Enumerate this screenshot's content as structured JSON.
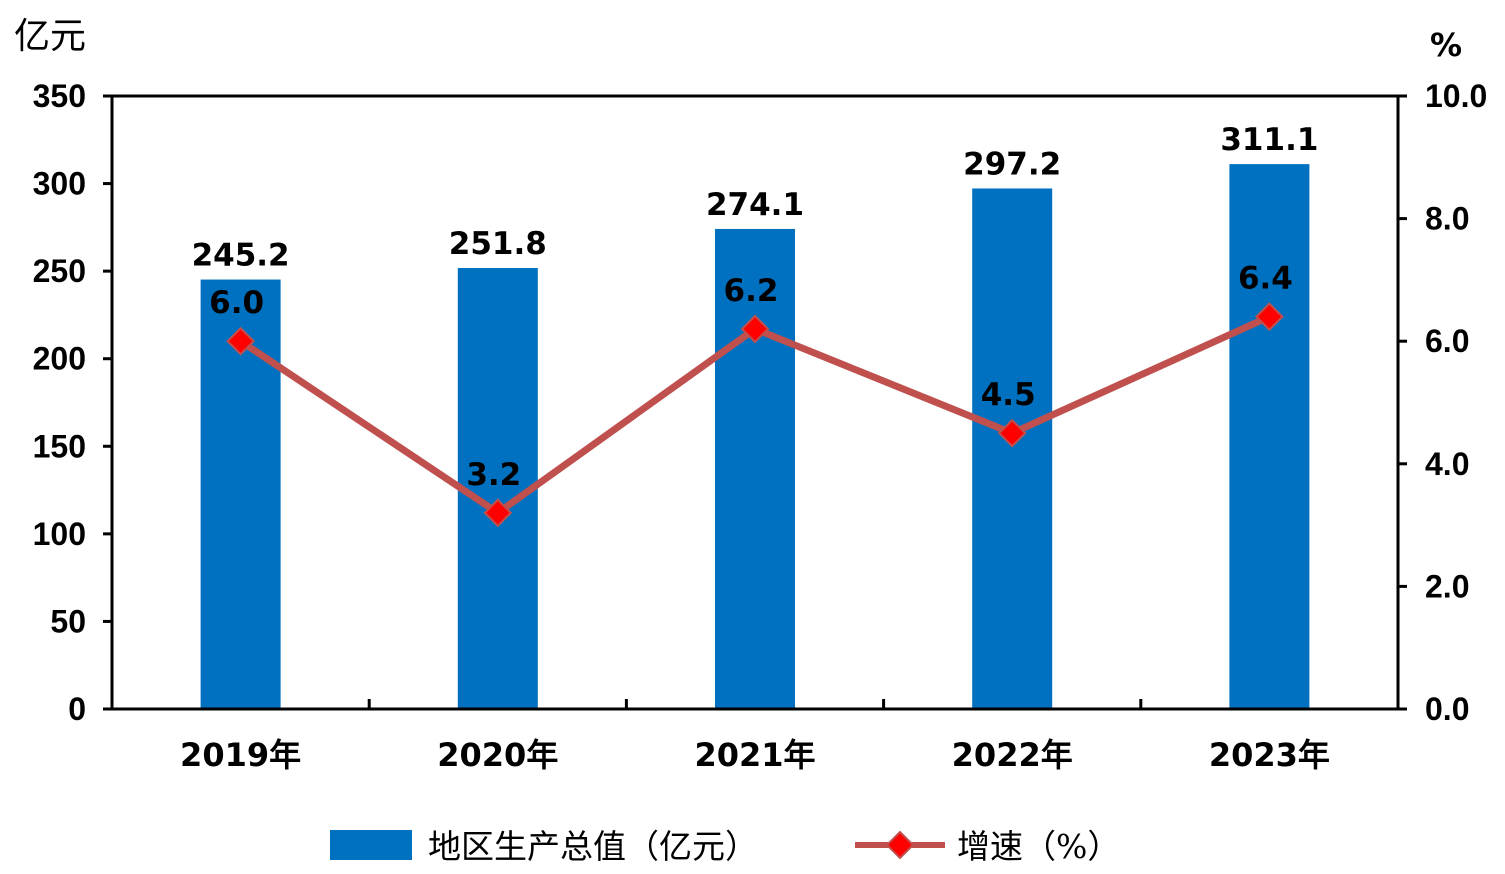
{
  "chart_data": {
    "type": "bar",
    "categories": [
      "2019年",
      "2020年",
      "2021年",
      "2022年",
      "2023年"
    ],
    "series": [
      {
        "name": "地区生产总值（亿元）",
        "type": "bar",
        "axis": "left",
        "values": [
          245.2,
          251.8,
          274.1,
          297.2,
          311.1
        ],
        "labels": [
          "245.2",
          "251.8",
          "274.1",
          "297.2",
          "311.1"
        ],
        "color": "#0070C0"
      },
      {
        "name": "增速（%）",
        "type": "line",
        "axis": "right",
        "values": [
          6.0,
          3.2,
          6.2,
          4.5,
          6.4
        ],
        "labels": [
          "6.0",
          "3.2",
          "6.2",
          "4.5",
          "6.4"
        ],
        "color": "#C0504D",
        "marker_color": "#FF0000",
        "marker": "diamond"
      }
    ],
    "y_left": {
      "unit": "亿元",
      "ylim": [
        0,
        350
      ],
      "ticks": [
        "0",
        "50",
        "100",
        "150",
        "200",
        "250",
        "300",
        "350"
      ]
    },
    "y_right": {
      "unit": "%",
      "ylim": [
        0,
        10
      ],
      "ticks": [
        "0.0",
        "2.0",
        "4.0",
        "6.0",
        "8.0",
        "10.0"
      ]
    },
    "grid": false,
    "legend": "bottom"
  }
}
